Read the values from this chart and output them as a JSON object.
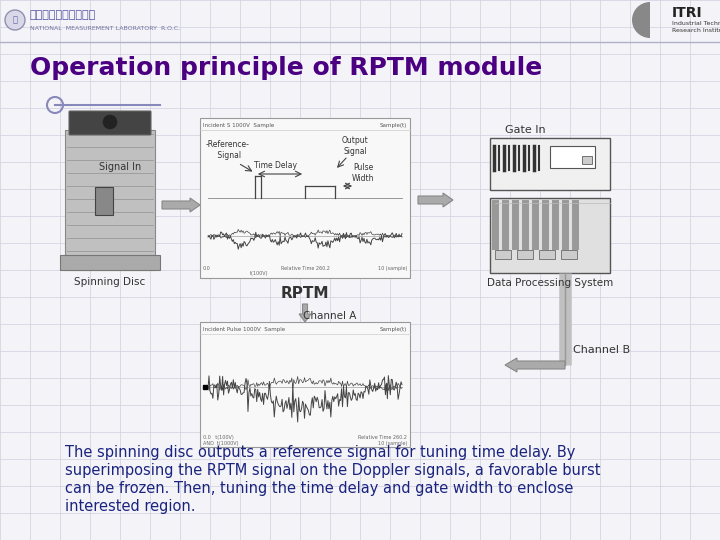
{
  "title": "Operation principle of RPTM module",
  "title_color": "#4b0082",
  "title_fontsize": 18,
  "bg_color": "#f4f4f8",
  "grid_color": "#d0d0e0",
  "body_text_lines": [
    "The spinning disc outputs a reference signal for tuning time delay. By",
    " superimposing the RPTM signal on the Doppler signals, a favorable burst",
    " can be frozen. Then, tuning the time delay and gate width to enclose",
    " interested region."
  ],
  "body_text_color": "#1a237e",
  "body_fontsize": 10.5,
  "spinning_disc_label": "Spinning Disc",
  "signal_in_label": "Signal In",
  "rptm_label": "RPTM",
  "channel_a_label": "Channel A",
  "channel_b_label": "Channel B",
  "gate_in_label": "Gate In",
  "data_proc_label": "Data Processing System",
  "reference_signal_label": "-Reference-\n Signal",
  "output_signal_label": "Output\nSignal",
  "time_delay_label": "Time Delay",
  "pulse_width_label": "Pulse\nWidth",
  "diagram_bg": "#ffffff",
  "diagram_border": "#cccccc"
}
